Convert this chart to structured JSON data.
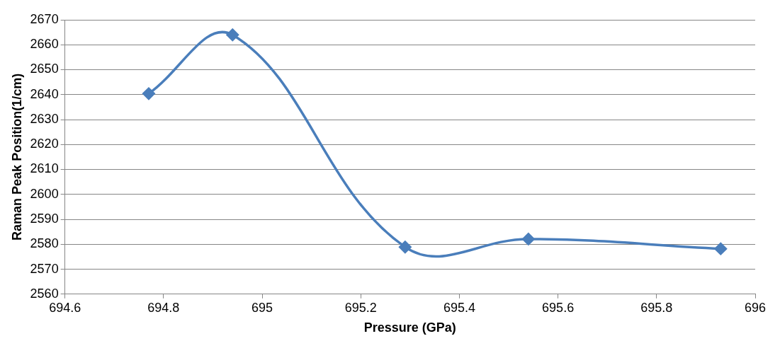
{
  "chart_data": {
    "type": "line",
    "xlabel": "Pressure (GPa)",
    "ylabel": "Raman Peak Position(1/cm)",
    "x": [
      694.77,
      694.94,
      695.29,
      695.54,
      695.93
    ],
    "series": [
      {
        "color": "#4a7ebb",
        "values": [
          2640.4,
          2664,
          2578.9,
          2582.1,
          2578.2
        ]
      }
    ],
    "xlim": [
      694.6,
      696
    ],
    "xticks": [
      694.6,
      694.8,
      695,
      695.2,
      695.4,
      695.6,
      695.8,
      696
    ],
    "ylim": [
      2560,
      2670
    ],
    "yticks": [
      2560,
      2570,
      2580,
      2590,
      2600,
      2610,
      2620,
      2630,
      2640,
      2650,
      2660,
      2670
    ],
    "grid": "y",
    "marker": "diamond",
    "line_style": "solid",
    "legend": false
  }
}
